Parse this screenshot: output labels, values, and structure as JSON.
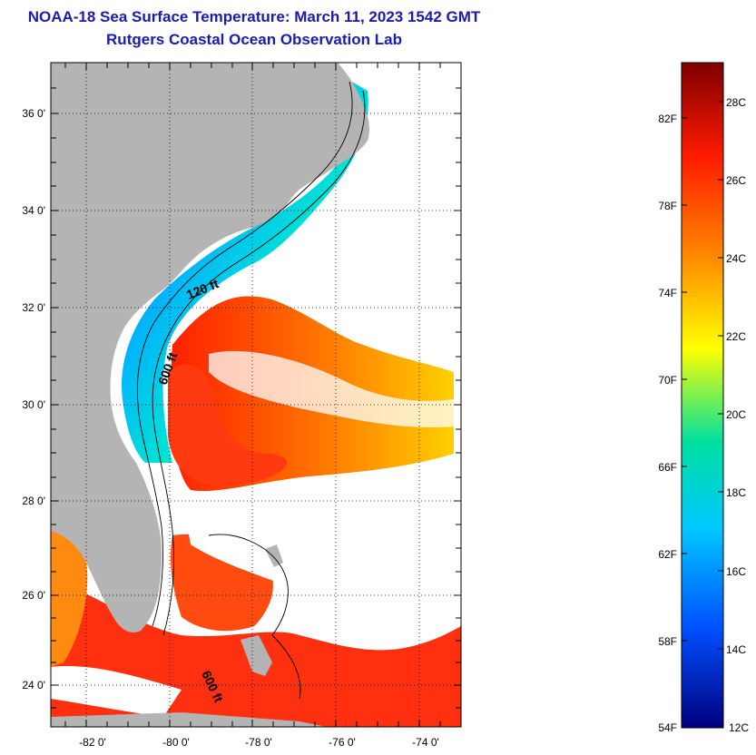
{
  "header": {
    "title": "NOAA-18 Sea Surface Temperature:  March 11, 2023 1542 GMT",
    "subtitle": "Rutgers Coastal Ocean Observation Lab"
  },
  "map": {
    "lat_labels": [
      "36 0'",
      "34 0'",
      "32 0'",
      "30 0'",
      "28 0'",
      "26 0'",
      "24 0'"
    ],
    "lon_labels": [
      "-82 0'",
      "-80 0'",
      "-78 0'",
      "-76 0'",
      "-74 0'"
    ],
    "isobaths": [
      "120 ft",
      "600 ft",
      "600 ft"
    ],
    "colors": {
      "land": "#b4b4b4",
      "no_data": "#ffffff",
      "frame": "#000000",
      "title": "#1b1bb0"
    }
  },
  "colorbar": {
    "f_labels": [
      "82F",
      "78F",
      "74F",
      "70F",
      "66F",
      "62F",
      "58F",
      "54F"
    ],
    "c_labels": [
      "28C",
      "26C",
      "24C",
      "22C",
      "20C",
      "18C",
      "16C",
      "14C",
      "12C"
    ],
    "gradient": [
      "#7f0000",
      "#ff1a00",
      "#ff8000",
      "#ffff00",
      "#00e0a0",
      "#00c8ff",
      "#0050ff",
      "#00007f"
    ]
  }
}
